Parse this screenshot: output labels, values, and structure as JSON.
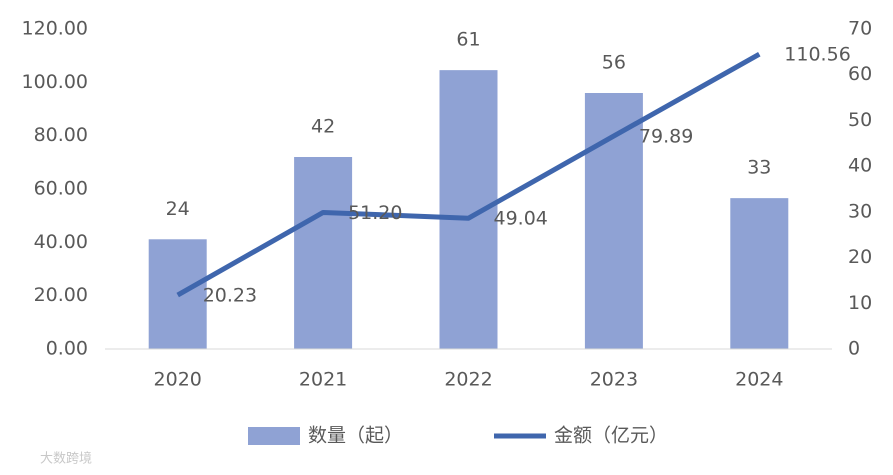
{
  "chart_data": {
    "type": "bar-line",
    "categories": [
      "2020",
      "2021",
      "2022",
      "2023",
      "2024"
    ],
    "series": [
      {
        "name": "数量（起）",
        "type": "bar",
        "axis": "y2",
        "color": "#8fa2d4",
        "values": [
          24,
          42,
          61,
          56,
          33
        ]
      },
      {
        "name": "金额（亿元）",
        "type": "line",
        "axis": "y",
        "color": "#3f66ad",
        "values": [
          20.23,
          51.2,
          49.04,
          79.89,
          110.56
        ],
        "value_labels": [
          "20.23",
          "51.20",
          "49.04",
          "79.89",
          "110.56"
        ]
      }
    ],
    "ylim": [
      0,
      120
    ],
    "yticks": [
      {
        "value": 0,
        "label": "0.00"
      },
      {
        "value": 20,
        "label": "20.00"
      },
      {
        "value": 40,
        "label": "40.00"
      },
      {
        "value": 60,
        "label": "60.00"
      },
      {
        "value": 80,
        "label": "80.00"
      },
      {
        "value": 100,
        "label": "100.00"
      },
      {
        "value": 120,
        "label": "120.00"
      }
    ],
    "y2lim": [
      0,
      70
    ],
    "y2ticks": [
      0,
      10,
      20,
      30,
      40,
      50,
      60,
      70
    ],
    "legend": "bottom",
    "watermark": "大数跨境"
  }
}
